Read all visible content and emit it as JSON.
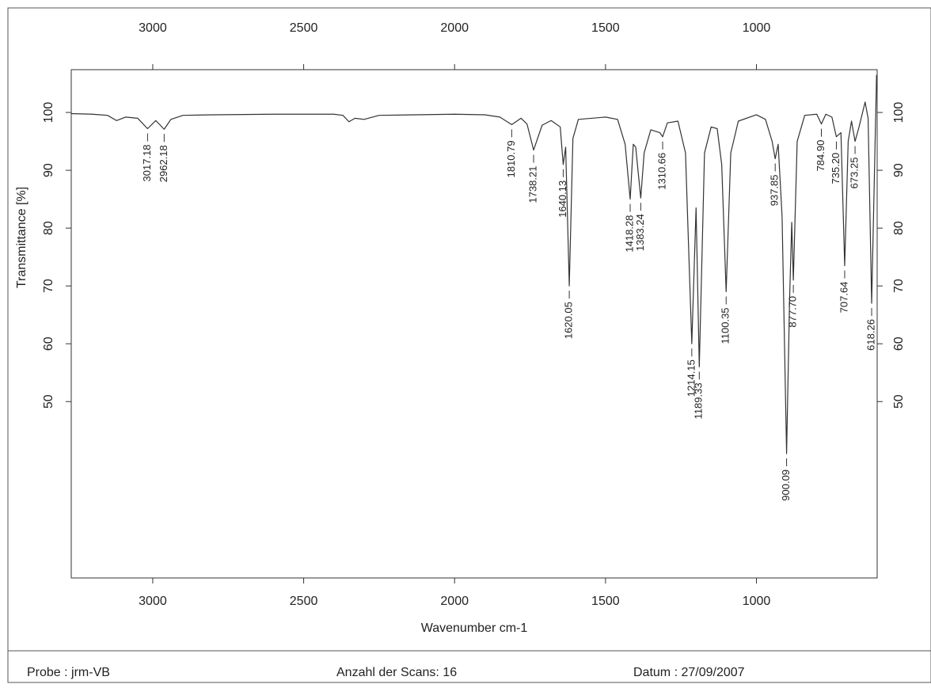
{
  "chart_data": {
    "type": "line",
    "xlabel": "Wavenumber cm-1",
    "ylabel": "Transmittance [%]",
    "color": "#333333",
    "xlim": [
      3270,
      600
    ],
    "ylim": [
      19.5,
      107.4
    ],
    "xticks": [
      3000,
      2500,
      2000,
      1500,
      1000
    ],
    "yticks": [
      50,
      60,
      70,
      80,
      90,
      100
    ],
    "grid": false,
    "x": [
      3270,
      3200,
      3150,
      3120,
      3090,
      3050,
      3017.18,
      2990,
      2962.18,
      2940,
      2900,
      2800,
      2600,
      2400,
      2370,
      2350,
      2330,
      2300,
      2250,
      2000,
      1900,
      1850,
      1810.79,
      1780,
      1760,
      1738.21,
      1710,
      1680,
      1650,
      1640.13,
      1632,
      1620.05,
      1608,
      1590,
      1500,
      1460,
      1435,
      1418.28,
      1408,
      1400,
      1383.24,
      1372,
      1350,
      1320,
      1310.66,
      1295,
      1260,
      1235,
      1214.15,
      1200,
      1189.33,
      1172,
      1150,
      1130,
      1115,
      1100.35,
      1085,
      1060,
      1000,
      970,
      948,
      937.85,
      928,
      915,
      900.09,
      890,
      883,
      877.7,
      865,
      840,
      800,
      784.9,
      770,
      750,
      735.2,
      720,
      707.64,
      696,
      685,
      673.25,
      660,
      640,
      630,
      618.26,
      608,
      602
    ],
    "values": [
      99.8,
      99.7,
      99.5,
      98.6,
      99.2,
      99.0,
      97.2,
      98.6,
      97.1,
      98.8,
      99.5,
      99.6,
      99.7,
      99.7,
      99.5,
      98.4,
      99.0,
      98.8,
      99.5,
      99.7,
      99.6,
      99.2,
      97.9,
      99.0,
      98.0,
      93.5,
      97.8,
      98.6,
      97.5,
      91.0,
      94.0,
      70.0,
      95.5,
      98.8,
      99.2,
      98.8,
      94.5,
      85.0,
      94.5,
      94.0,
      85.2,
      93.0,
      97.0,
      96.5,
      95.8,
      98.2,
      98.5,
      93.0,
      60.0,
      83.5,
      56.0,
      93.0,
      97.5,
      97.2,
      91.0,
      69.0,
      93.0,
      98.5,
      99.6,
      98.8,
      95.0,
      92.0,
      94.5,
      82.0,
      41.0,
      68.0,
      81.0,
      71.0,
      95.0,
      99.5,
      99.7,
      98.0,
      99.7,
      99.2,
      95.8,
      96.5,
      73.5,
      95.0,
      98.5,
      95.0,
      97.5,
      101.8,
      99.0,
      67.0,
      92.0,
      106.5
    ],
    "peaks": {
      "x": [
        3017.18,
        2962.18,
        1810.79,
        1738.21,
        1640.13,
        1620.05,
        1418.28,
        1383.24,
        1310.66,
        1214.15,
        1189.33,
        1100.35,
        937.85,
        900.09,
        877.7,
        784.9,
        735.2,
        707.64,
        673.25,
        618.26
      ],
      "value_labels": [
        "3017.18",
        "2962.18",
        "1810.79",
        "1738.21",
        "1640.13",
        "1620.05",
        "1418.28",
        "1383.24",
        "1310.66",
        "1214.15",
        "1189.33",
        "1100.35",
        "937.85",
        "900.09",
        "877.70",
        "784.90",
        "735.20",
        "707.64",
        "673.25",
        "618.26"
      ]
    }
  },
  "footer": {
    "sample": "Probe : jrm-VB",
    "scans": "Anzahl der Scans: 16",
    "date": "Datum : 27/09/2007"
  }
}
